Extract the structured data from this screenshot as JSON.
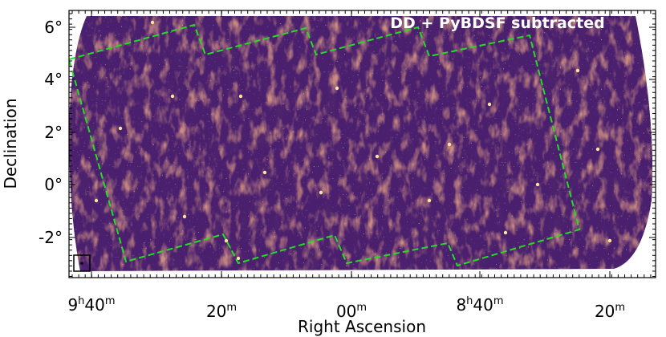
{
  "figure": {
    "title": "DD + PyBDSF subtracted",
    "xlabel": "Right Ascension",
    "ylabel": "Declination",
    "colors": {
      "background": "#ffffff",
      "map_base": "#4a1f6e",
      "footprint_line": "#22dd22",
      "frame": "#000000",
      "bright_source": "#fde59f"
    }
  },
  "ra_ticks": [
    {
      "hours": "9",
      "hsup": "h",
      "minutes": "40",
      "msup": "m"
    },
    {
      "hours": "",
      "hsup": "",
      "minutes": "20",
      "msup": "m"
    },
    {
      "hours": "",
      "hsup": "",
      "minutes": "00",
      "msup": "m"
    },
    {
      "hours": "8",
      "hsup": "h",
      "minutes": "40",
      "msup": "m"
    },
    {
      "hours": "",
      "hsup": "",
      "minutes": "20",
      "msup": "m"
    }
  ],
  "dec_ticks": [
    "6°",
    "4°",
    "2°",
    "0°",
    "-2°"
  ],
  "beam_marker": "beam-marker"
}
